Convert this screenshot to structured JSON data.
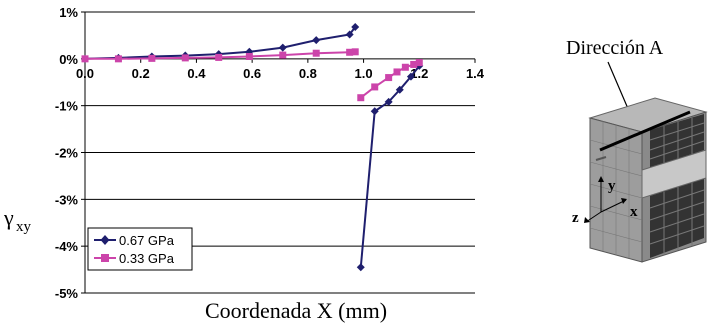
{
  "chart_data": {
    "type": "line",
    "xlabel": "Coordenada X (mm)",
    "ylabel_main": "γ",
    "ylabel_sub": "xy",
    "xlim": [
      0,
      1.4
    ],
    "ylim": [
      -5,
      1
    ],
    "x_ticks": [
      "0.0",
      "0.2",
      "0.4",
      "0.6",
      "0.8",
      "1.0",
      "1.2",
      "1.4"
    ],
    "y_ticks": [
      "1%",
      "0%",
      "-1%",
      "-2%",
      "-3%",
      "-4%",
      "-5%"
    ],
    "y_tick_values": [
      1,
      0,
      -1,
      -2,
      -3,
      -4,
      -5
    ],
    "gridlines": "horizontal",
    "legend_position": "bottom-left",
    "series": [
      {
        "name": "0.67 GPa",
        "color": "#1f1f6e",
        "marker": "diamond",
        "segments": [
          {
            "x": [
              0.0,
              0.12,
              0.24,
              0.36,
              0.48,
              0.59,
              0.71,
              0.83,
              0.95,
              0.97
            ],
            "y": [
              0.0,
              0.02,
              0.05,
              0.07,
              0.1,
              0.15,
              0.24,
              0.4,
              0.52,
              0.68
            ]
          },
          {
            "x": [
              0.99,
              1.04,
              1.09,
              1.13,
              1.17,
              1.2
            ],
            "y": [
              -4.45,
              -1.12,
              -0.92,
              -0.66,
              -0.38,
              -0.15
            ]
          }
        ]
      },
      {
        "name": "0.33 GPa",
        "color": "#cc44aa",
        "marker": "square",
        "segments": [
          {
            "x": [
              0.0,
              0.12,
              0.24,
              0.36,
              0.48,
              0.59,
              0.71,
              0.83,
              0.95,
              0.97
            ],
            "y": [
              0.0,
              0.0,
              0.01,
              0.02,
              0.03,
              0.05,
              0.08,
              0.12,
              0.14,
              0.15
            ]
          },
          {
            "x": [
              0.99,
              1.04,
              1.09,
              1.12,
              1.15,
              1.18,
              1.2
            ],
            "y": [
              -0.83,
              -0.6,
              -0.4,
              -0.28,
              -0.18,
              -0.12,
              -0.08
            ]
          }
        ]
      }
    ]
  },
  "diagram": {
    "label": "Dirección A",
    "axis_y": "y",
    "axis_x": "x",
    "axis_z": "z"
  }
}
